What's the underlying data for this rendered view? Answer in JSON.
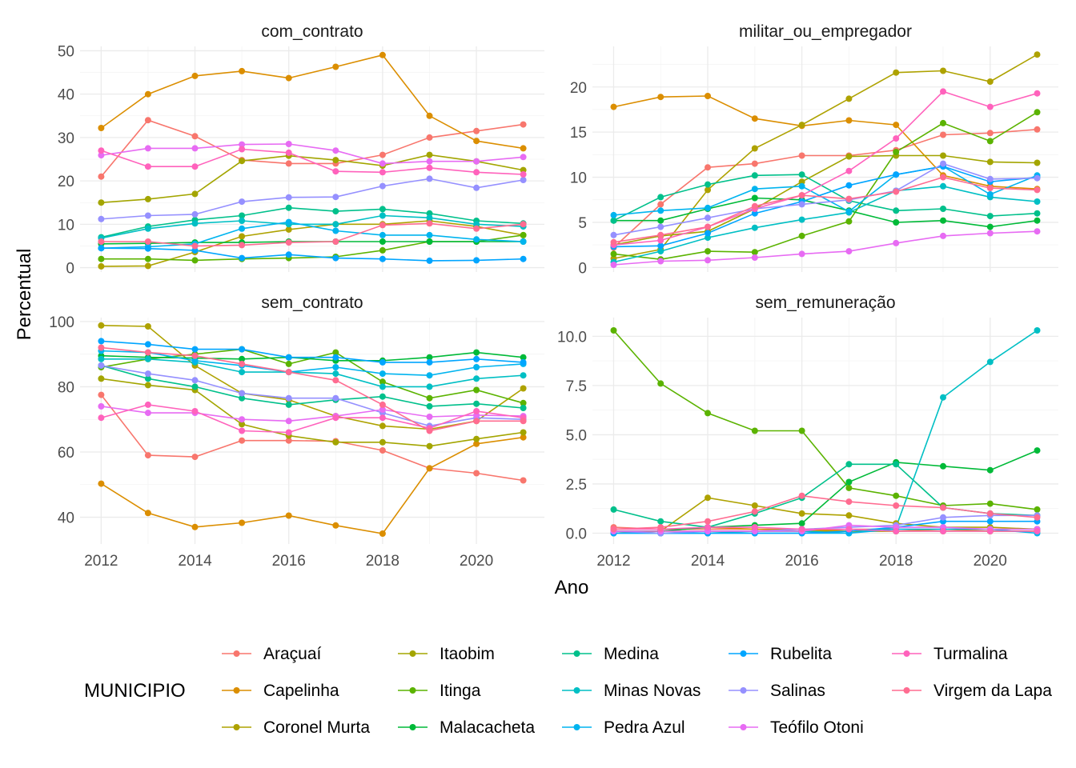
{
  "chart_data": {
    "type": "line",
    "xlabel": "Ano",
    "ylabel": "Percentual",
    "x": [
      2012,
      2013,
      2014,
      2015,
      2016,
      2017,
      2018,
      2019,
      2020,
      2021
    ],
    "x_ticks": [
      2012,
      2014,
      2016,
      2018,
      2020
    ],
    "legend": {
      "title": "MUNICIPIO",
      "position": "bottom"
    },
    "grid": true,
    "series_colors": {
      "Araçuaí": "#F8766D",
      "Capelinha": "#DB8E00",
      "Coronel Murta": "#AEA200",
      "Itaobim": "#A3A500",
      "Itinga": "#5BB300",
      "Malacacheta": "#00BA38",
      "Medina": "#00C08B",
      "Minas Novas": "#00BFC4",
      "Pedra Azul": "#00B4EF",
      "Rubelita": "#00A5FF",
      "Salinas": "#9590FF",
      "Teófilo Otoni": "#E76BF3",
      "Turmalina": "#FF62BC",
      "Virgem da Lapa": "#FF6C91"
    },
    "legend_columns": [
      [
        "Araçuaí",
        "Capelinha",
        "Coronel Murta"
      ],
      [
        "Itaobim",
        "Itinga",
        "Malacacheta"
      ],
      [
        "Medina",
        "Minas Novas",
        "Pedra Azul"
      ],
      [
        "Rubelita",
        "Salinas",
        "Teófilo Otoni"
      ],
      [
        "Turmalina",
        "Virgem da Lapa"
      ]
    ],
    "panels": [
      {
        "title": "com_contrato",
        "ylim": [
          -1,
          51
        ],
        "y_ticks": [
          0,
          10,
          20,
          30,
          40,
          50
        ],
        "y_tick_labels": [
          "0",
          "10",
          "20",
          "30",
          "40",
          "50"
        ],
        "series": [
          {
            "name": "Araçuaí",
            "values": [
              21,
              34,
              30.3,
              24.8,
              24,
              24,
              26,
              30,
              31.5,
              33
            ]
          },
          {
            "name": "Capelinha",
            "values": [
              32.2,
              40,
              44.2,
              45.3,
              43.7,
              46.3,
              49,
              35,
              29.2,
              27.5
            ]
          },
          {
            "name": "Coronel Murta",
            "values": [
              0.3,
              0.4,
              3.6,
              7.2,
              8.8,
              10,
              10,
              10.8,
              9.5,
              7.5
            ]
          },
          {
            "name": "Itaobim",
            "values": [
              15,
              15.8,
              17,
              24.6,
              25.8,
              24.8,
              23.5,
              26,
              24.5,
              22.5
            ]
          },
          {
            "name": "Itinga",
            "values": [
              2,
              2,
              1.7,
              2,
              2.2,
              2.5,
              4,
              6,
              6,
              7.5
            ]
          },
          {
            "name": "Malacacheta",
            "values": [
              5.5,
              5.6,
              5.8,
              5.8,
              6,
              6,
              6,
              6,
              6,
              6
            ]
          },
          {
            "name": "Medina",
            "values": [
              7,
              9.5,
              11,
              12,
              13.8,
              13,
              13.5,
              12.5,
              10.8,
              10.2
            ]
          },
          {
            "name": "Minas Novas",
            "values": [
              6.8,
              9,
              10.2,
              10.8,
              10,
              10,
              12,
              11.5,
              10,
              9.5
            ]
          },
          {
            "name": "Pedra Azul",
            "values": [
              4.5,
              4.8,
              5.5,
              9,
              10.5,
              8.5,
              7.5,
              7.5,
              6.5,
              6
            ]
          },
          {
            "name": "Rubelita",
            "values": [
              4.5,
              4.4,
              4,
              2.2,
              3,
              2.2,
              2,
              1.6,
              1.7,
              2
            ]
          },
          {
            "name": "Salinas",
            "values": [
              11.2,
              12,
              12.3,
              15.2,
              16.2,
              16.3,
              18.8,
              20.5,
              18.4,
              20.2
            ]
          },
          {
            "name": "Teófilo Otoni",
            "values": [
              25.9,
              27.5,
              27.5,
              28.4,
              28.5,
              27,
              24,
              24.5,
              24.5,
              25.5
            ]
          },
          {
            "name": "Turmalina",
            "values": [
              27,
              23.3,
              23.3,
              27.3,
              26.5,
              22.2,
              22,
              23,
              22,
              21.5
            ]
          },
          {
            "name": "Virgem da Lapa",
            "values": [
              6,
              6,
              5,
              5.2,
              5.8,
              6,
              9.8,
              10.2,
              9,
              10
            ]
          }
        ]
      },
      {
        "title": "militar_ou_empregador",
        "ylim": [
          -0.5,
          24.5
        ],
        "y_ticks": [
          0,
          5,
          10,
          15,
          20
        ],
        "y_tick_labels": [
          "0",
          "5",
          "10",
          "15",
          "20"
        ],
        "series": [
          {
            "name": "Araçuaí",
            "values": [
              2.2,
              7,
              11.1,
              11.5,
              12.4,
              12.4,
              13,
              14.7,
              14.9,
              15.3
            ]
          },
          {
            "name": "Capelinha",
            "values": [
              17.8,
              18.9,
              19,
              16.5,
              15.7,
              16.3,
              15.8,
              10.2,
              9,
              8.7
            ]
          },
          {
            "name": "Coronel Murta",
            "values": [
              1,
              2,
              8.6,
              13.2,
              15.8,
              18.7,
              21.6,
              21.8,
              20.6,
              23.6
            ]
          },
          {
            "name": "Itaobim",
            "values": [
              2.5,
              3.5,
              4,
              6.5,
              9.5,
              12.3,
              12.4,
              12.4,
              11.7,
              11.6
            ]
          },
          {
            "name": "Itinga",
            "values": [
              1.5,
              0.9,
              1.8,
              1.7,
              3.5,
              5.1,
              12.8,
              16,
              14,
              17.2
            ]
          },
          {
            "name": "Malacacheta",
            "values": [
              5.2,
              5.2,
              6.5,
              7.7,
              7.5,
              6.3,
              5,
              5.2,
              4.5,
              5.2
            ]
          },
          {
            "name": "Medina",
            "values": [
              5.2,
              7.8,
              9.2,
              10.2,
              10.3,
              7.4,
              6.3,
              6.5,
              5.7,
              6
            ]
          },
          {
            "name": "Minas Novas",
            "values": [
              0.6,
              1.8,
              3.3,
              4.4,
              5.3,
              6.1,
              8.5,
              9,
              7.8,
              7.3
            ]
          },
          {
            "name": "Pedra Azul",
            "values": [
              5.8,
              6.3,
              6.6,
              8.7,
              9,
              6.2,
              10.3,
              11.2,
              8.1,
              10.2
            ]
          },
          {
            "name": "Rubelita",
            "values": [
              2.3,
              2.4,
              3.8,
              6,
              7.3,
              9.1,
              10.3,
              11.2,
              9.5,
              10
            ]
          },
          {
            "name": "Salinas",
            "values": [
              3.6,
              4.5,
              5.5,
              6.5,
              7,
              7.5,
              8.5,
              11.5,
              9.8,
              9.9
            ]
          },
          {
            "name": "Teófilo Otoni",
            "values": [
              0.3,
              0.7,
              0.8,
              1.1,
              1.5,
              1.8,
              2.7,
              3.5,
              3.8,
              4
            ]
          },
          {
            "name": "Turmalina",
            "values": [
              2.5,
              3,
              4.5,
              6.5,
              8,
              10.7,
              14.3,
              19.5,
              17.8,
              19.3
            ]
          },
          {
            "name": "Virgem da Lapa",
            "values": [
              2.8,
              3.6,
              4.5,
              6.8,
              8,
              7.6,
              8.4,
              10,
              8.8,
              8.6
            ]
          }
        ]
      },
      {
        "title": "sem_contrato",
        "ylim": [
          31.8,
          101.2
        ],
        "y_ticks": [
          40,
          60,
          80,
          100
        ],
        "y_tick_labels": [
          "40",
          "60",
          "80",
          "100"
        ],
        "series": [
          {
            "name": "Araçuaí",
            "values": [
              77.5,
              59,
              58.5,
              63.5,
              63.5,
              63.3,
              60.5,
              55,
              53.5,
              51.3
            ]
          },
          {
            "name": "Capelinha",
            "values": [
              50.3,
              41.3,
              37,
              38.3,
              40.5,
              37.5,
              35,
              55,
              62.5,
              64.5
            ]
          },
          {
            "name": "Coronel Murta",
            "values": [
              98.8,
              98.5,
              86.5,
              78,
              76,
              71,
              68,
              67,
              69.5,
              79.5
            ]
          },
          {
            "name": "Itaobim",
            "values": [
              82.5,
              80.5,
              79,
              68.5,
              65,
              63,
              63,
              61.8,
              64,
              66
            ]
          },
          {
            "name": "Itinga",
            "values": [
              86,
              88.5,
              90,
              91.5,
              87,
              90.5,
              81.5,
              76.5,
              79,
              75
            ]
          },
          {
            "name": "Malacacheta",
            "values": [
              89.5,
              89,
              88.8,
              88.5,
              89,
              88,
              88,
              89,
              90.5,
              89
            ]
          },
          {
            "name": "Medina",
            "values": [
              86.5,
              82.5,
              80,
              76.5,
              74.5,
              76,
              77,
              74,
              74.8,
              73.5
            ]
          },
          {
            "name": "Minas Novas",
            "values": [
              88.5,
              88.5,
              87.5,
              84.5,
              84.5,
              84,
              80,
              80,
              82.5,
              83.5
            ]
          },
          {
            "name": "Pedra Azul",
            "values": [
              91,
              90.5,
              88,
              86.5,
              84.5,
              86,
              84,
              83.5,
              86,
              87
            ]
          },
          {
            "name": "Rubelita",
            "values": [
              94,
              93,
              91.5,
              91.5,
              89,
              89,
              87.5,
              87.5,
              88.5,
              87.5
            ]
          },
          {
            "name": "Salinas",
            "values": [
              86.5,
              84,
              82,
              78,
              76.5,
              76.5,
              72,
              68,
              70.5,
              70
            ]
          },
          {
            "name": "Teófilo Otoni",
            "values": [
              74,
              72,
              72,
              70,
              69.5,
              71,
              73,
              70.8,
              71.3,
              71
            ]
          },
          {
            "name": "Turmalina",
            "values": [
              70.5,
              74.5,
              72.5,
              66.5,
              66,
              70.5,
              70.5,
              67.3,
              72.5,
              70.5
            ]
          },
          {
            "name": "Virgem da Lapa",
            "values": [
              92,
              90.5,
              89.5,
              87,
              84.5,
              82,
              74.5,
              66.5,
              69.5,
              69.5
            ]
          }
        ]
      },
      {
        "title": "sem_remuneração",
        "ylim": [
          -0.55,
          10.95
        ],
        "y_ticks": [
          0,
          2.5,
          5,
          7.5,
          10
        ],
        "y_tick_labels": [
          "0.0",
          "2.5",
          "5.0",
          "7.5",
          "10.0"
        ],
        "series": [
          {
            "name": "Araçuaí",
            "values": [
              0.3,
              0.2,
              0.2,
              0.2,
              0.1,
              0.2,
              0.2,
              0.2,
              0.2,
              0.2
            ]
          },
          {
            "name": "Capelinha",
            "values": [
              0.1,
              0.1,
              0.3,
              0.2,
              0.2,
              0.1,
              0.1,
              0.2,
              0.1,
              0.1
            ]
          },
          {
            "name": "Coronel Murta",
            "values": [
              0,
              0.1,
              1.8,
              1.4,
              1,
              0.9,
              0.5,
              0.3,
              0.3,
              0.2
            ]
          },
          {
            "name": "Itaobim",
            "values": [
              0.1,
              0.1,
              0.1,
              0.1,
              0.1,
              0.1,
              0.1,
              0.1,
              0.1,
              0.1
            ]
          },
          {
            "name": "Itinga",
            "values": [
              10.3,
              7.6,
              6.1,
              5.2,
              5.2,
              2.3,
              1.9,
              1.4,
              1.5,
              1.2
            ]
          },
          {
            "name": "Malacacheta",
            "values": [
              0.1,
              0.1,
              0.3,
              0.4,
              0.5,
              2.6,
              3.6,
              3.4,
              3.2,
              4.2
            ]
          },
          {
            "name": "Medina",
            "values": [
              1.2,
              0.6,
              0.3,
              1,
              1.8,
              3.5,
              3.5,
              1.3,
              1,
              0.9
            ]
          },
          {
            "name": "Minas Novas",
            "values": [
              0.1,
              0,
              0,
              0.1,
              0.1,
              0,
              0.3,
              6.9,
              8.7,
              10.3
            ]
          },
          {
            "name": "Pedra Azul",
            "values": [
              0,
              0,
              0,
              0,
              0,
              0,
              0.2,
              0.2,
              0.2,
              0
            ]
          },
          {
            "name": "Rubelita",
            "values": [
              0,
              0,
              0,
              0,
              0,
              0.1,
              0.3,
              0.6,
              0.6,
              0.6
            ]
          },
          {
            "name": "Salinas",
            "values": [
              0.1,
              0,
              0.1,
              0.1,
              0.2,
              0.3,
              0.4,
              0.8,
              0.9,
              0.9
            ]
          },
          {
            "name": "Teófilo Otoni",
            "values": [
              0.1,
              0.1,
              0.1,
              0.1,
              0.1,
              0.4,
              0.3,
              0.3,
              0.2,
              0.2
            ]
          },
          {
            "name": "Turmalina",
            "values": [
              0.2,
              0.2,
              0.3,
              0.3,
              0.2,
              0.2,
              0.1,
              0.1,
              0.1,
              0.1
            ]
          },
          {
            "name": "Virgem da Lapa",
            "values": [
              0.2,
              0.3,
              0.6,
              1.1,
              1.9,
              1.6,
              1.4,
              1.3,
              1,
              0.8
            ]
          }
        ]
      }
    ]
  }
}
